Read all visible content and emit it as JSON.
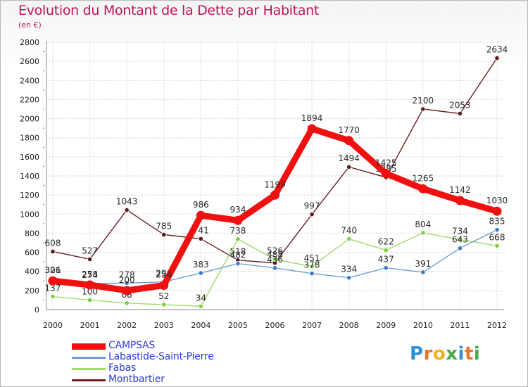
{
  "title": "Evolution du Montant de la Dette par Habitant",
  "subtitle": "(en €)",
  "logo": {
    "text": "Proxiti",
    "letter_colors": [
      "#2f8fd6",
      "#e8762b",
      "#f0b21f",
      "#4aa84a",
      "#2f8fd6",
      "#e8762b",
      "#4aa84a"
    ]
  },
  "chart_data": {
    "type": "line",
    "x": [
      "2000",
      "2001",
      "2002",
      "2003",
      "2004",
      "2005",
      "2006",
      "2007",
      "2008",
      "2009",
      "2010",
      "2011",
      "2012"
    ],
    "ylim": [
      0,
      2800
    ],
    "yticks": [
      "0",
      "200",
      "400",
      "600",
      "800",
      "1000",
      "1200",
      "1400",
      "1600",
      "1800",
      "2000",
      "2200",
      "2400",
      "2600",
      "2800"
    ],
    "grid": true,
    "legend_position": "bottom-left",
    "series": [
      {
        "name": "Montbartier",
        "color": "#6b1e22",
        "marker": "#5a1a1f",
        "values": [
          608,
          527,
          1043,
          785,
          741,
          518,
          488,
          997,
          1494,
          1385,
          2100,
          2053,
          2634
        ],
        "labels": [
          "608",
          "527",
          "1043",
          "785",
          "741",
          "518",
          "488",
          "997",
          "1494",
          "1385",
          "2100",
          "2053",
          "2634"
        ]
      },
      {
        "name": "Fabas",
        "color": "#9edc6a",
        "marker": "#7ccf44",
        "values": [
          137,
          100,
          68,
          52,
          34,
          738,
          526,
          451,
          740,
          622,
          804,
          734,
          668
        ],
        "labels": [
          "137",
          "100",
          "68",
          "52",
          "34",
          "738",
          "526",
          "451",
          "740",
          "622",
          "804",
          "734",
          "668"
        ]
      },
      {
        "name": "Labastide-Saint-Pierre",
        "color": "#6e9fd0",
        "marker": "#3a7cc4",
        "values": [
          326,
          274,
          278,
          290,
          383,
          482,
          436,
          378,
          334,
          437,
          391,
          643,
          835
        ],
        "labels": [
          "326",
          "274",
          "278",
          "290",
          "383",
          "482",
          "436",
          "378",
          "334",
          "437",
          "391",
          "643",
          "835"
        ]
      },
      {
        "name": "CAMPSAS",
        "color": "#f01010",
        "marker": "#f01010",
        "values": [
          301,
          258,
          200,
          254,
          986,
          934,
          1199,
          1894,
          1770,
          1425,
          1265,
          1142,
          1030
        ],
        "labels": [
          "301",
          "258",
          "200",
          "254",
          "986",
          "934",
          "1199",
          "1894",
          "1770",
          "1425",
          "1265",
          "1142",
          "1030"
        ]
      }
    ],
    "legend": [
      "CAMPSAS",
      "Labastide-Saint-Pierre",
      "Fabas",
      "Montbartier"
    ]
  }
}
